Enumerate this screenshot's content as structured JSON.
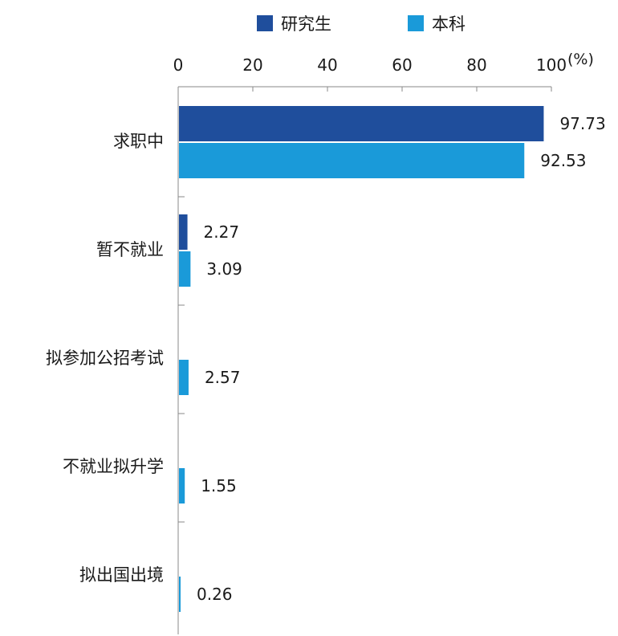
{
  "chart_data": {
    "type": "bar",
    "orientation": "horizontal",
    "x_axis_position": "top",
    "unit_label": "(%)",
    "xlim": [
      0,
      100
    ],
    "x_ticks": [
      0,
      20,
      40,
      60,
      80,
      100
    ],
    "grid": false,
    "legend_position": "top",
    "categories": [
      "求职中",
      "暂不就业",
      "拟参加公招考试",
      "不就业拟升学",
      "拟出国出境"
    ],
    "series": [
      {
        "name": "研究生",
        "color": "#1f4e9c",
        "values": [
          97.73,
          2.27,
          null,
          null,
          null
        ]
      },
      {
        "name": "本科",
        "color": "#1a9ad9",
        "values": [
          92.53,
          3.09,
          2.57,
          1.55,
          0.26
        ]
      }
    ]
  }
}
